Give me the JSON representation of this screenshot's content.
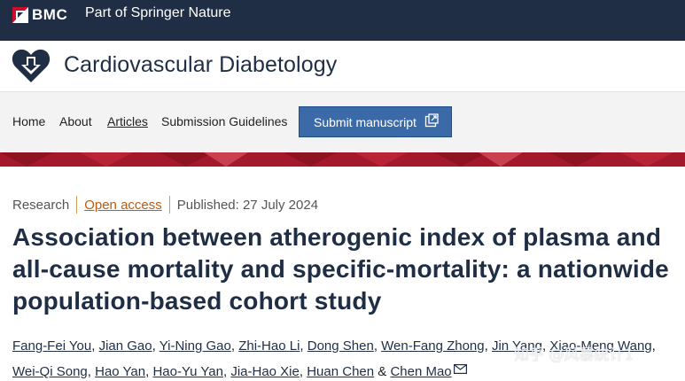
{
  "topbar": {
    "brand": "BMC",
    "tagline": "Part of Springer Nature"
  },
  "journal": {
    "title": "Cardiovascular Diabetology",
    "icon": "heart-arrow-logo-icon"
  },
  "nav": {
    "home": "Home",
    "about": "About",
    "articles": "Articles",
    "guidelines": "Submission Guidelines",
    "submit": "Submit manuscript"
  },
  "article": {
    "type": "Research",
    "access": "Open access",
    "published": "Published: 27 July 2024",
    "title": "Association between atherogenic index of plasma and all-cause mortality and specific-mortality: a nationwide population-based cohort study",
    "authors": [
      "Fang-Fei You",
      "Jian Gao",
      "Yi-Ning Gao",
      "Zhi-Hao Li",
      "Dong Shen",
      "Wen-Fang Zhong",
      "Jin Yang",
      "Xiao-Meng Wang",
      "Wei-Qi Song",
      "Hao Yan",
      "Hao-Yu Yan",
      "Jia-Hao Xie",
      "Huan Chen",
      "Chen Mao"
    ],
    "author_sep": ", ",
    "author_and": " & "
  },
  "watermark": "知乎 @风暴统计1",
  "colors": {
    "topbar": "#1f2e44",
    "banner": "#a3182a",
    "button": "#3a6ba8",
    "open_access": "#c15b0f"
  }
}
